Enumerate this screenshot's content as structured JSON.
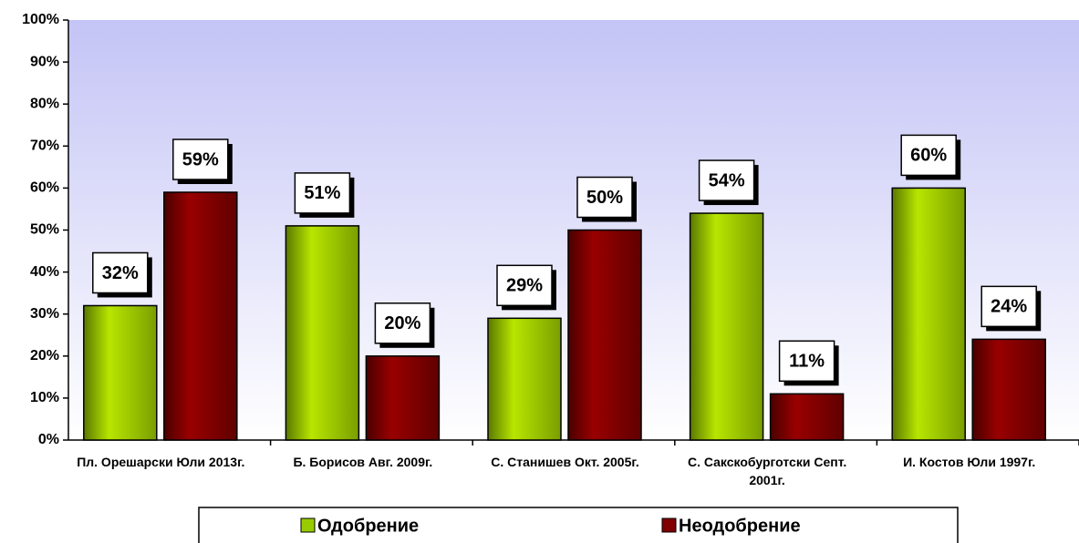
{
  "chart_data": {
    "type": "bar",
    "categories": [
      "Пл. Орешарски Юли 2013г.",
      "Б. Борисов Авг. 2009г.",
      "С. Станишев Окт. 2005г.",
      "С. Сакскобурготски Септ. 2001г.",
      "И. Костов Юли 1997г."
    ],
    "series": [
      {
        "name": "Одобрение",
        "color": "#99cc00",
        "values": [
          32,
          51,
          29,
          54,
          60
        ],
        "value_labels": [
          "32%",
          "51%",
          "29%",
          "54%",
          "60%"
        ]
      },
      {
        "name": "Неодобрение",
        "color": "#800000",
        "values": [
          59,
          20,
          50,
          11,
          24
        ],
        "value_labels": [
          "59%",
          "20%",
          "50%",
          "11%",
          "24%"
        ]
      }
    ],
    "ylim": [
      0,
      100
    ],
    "yticks": [
      {
        "value": 0,
        "label": "0%"
      },
      {
        "value": 10,
        "label": "10%"
      },
      {
        "value": 20,
        "label": "20%"
      },
      {
        "value": 30,
        "label": "30%"
      },
      {
        "value": 40,
        "label": "40%"
      },
      {
        "value": 50,
        "label": "50%"
      },
      {
        "value": 60,
        "label": "60%"
      },
      {
        "value": 70,
        "label": "70%"
      },
      {
        "value": 80,
        "label": "80%"
      },
      {
        "value": 90,
        "label": "90%"
      },
      {
        "value": 100,
        "label": "100%"
      }
    ],
    "legend": "bottom"
  }
}
